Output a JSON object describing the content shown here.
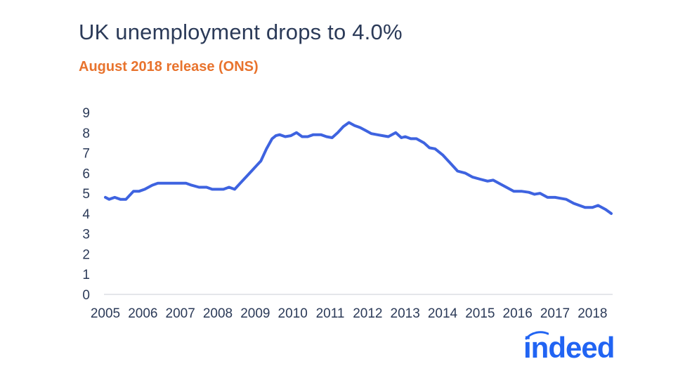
{
  "chart_data": {
    "type": "line",
    "title": "UK unemployment drops to 4.0%",
    "subtitle": "August 2018 release (ONS)",
    "xlabel": "",
    "ylabel": "",
    "xlim": [
      2005.0,
      2018.5
    ],
    "ylim": [
      0,
      9
    ],
    "yticks": [
      0,
      1,
      2,
      3,
      4,
      5,
      6,
      7,
      8,
      9
    ],
    "xticks": [
      2005,
      2006,
      2007,
      2008,
      2009,
      2010,
      2011,
      2012,
      2013,
      2014,
      2015,
      2016,
      2017,
      2018
    ],
    "grid": false,
    "legend": "none",
    "line_color": "#3e63e0",
    "series": [
      {
        "x": [
          2005.0,
          2005.1,
          2005.25,
          2005.4,
          2005.55,
          2005.75,
          2005.9,
          2006.05,
          2006.25,
          2006.4,
          2006.6,
          2006.8,
          2007.0,
          2007.15,
          2007.3,
          2007.5,
          2007.7,
          2007.85,
          2008.0,
          2008.15,
          2008.3,
          2008.45,
          2008.6,
          2008.75,
          2008.9,
          2009.05,
          2009.15,
          2009.3,
          2009.45,
          2009.55,
          2009.65,
          2009.8,
          2009.95,
          2010.1,
          2010.25,
          2010.4,
          2010.55,
          2010.75,
          2010.9,
          2011.05,
          2011.2,
          2011.35,
          2011.5,
          2011.65,
          2011.8,
          2011.95,
          2012.1,
          2012.25,
          2012.4,
          2012.55,
          2012.75,
          2012.9,
          2013.0,
          2013.15,
          2013.3,
          2013.5,
          2013.65,
          2013.8,
          2014.0,
          2014.2,
          2014.4,
          2014.6,
          2014.8,
          2015.0,
          2015.2,
          2015.35,
          2015.5,
          2015.7,
          2015.9,
          2016.1,
          2016.3,
          2016.45,
          2016.6,
          2016.8,
          2017.0,
          2017.15,
          2017.3,
          2017.5,
          2017.65,
          2017.8,
          2018.0,
          2018.15,
          2018.35,
          2018.5
        ],
        "y": [
          4.8,
          4.7,
          4.8,
          4.7,
          4.7,
          5.1,
          5.1,
          5.2,
          5.4,
          5.5,
          5.5,
          5.5,
          5.5,
          5.5,
          5.4,
          5.3,
          5.3,
          5.2,
          5.2,
          5.2,
          5.3,
          5.2,
          5.5,
          5.8,
          6.1,
          6.4,
          6.6,
          7.2,
          7.7,
          7.85,
          7.9,
          7.8,
          7.85,
          8.0,
          7.8,
          7.8,
          7.9,
          7.9,
          7.8,
          7.75,
          8.0,
          8.3,
          8.5,
          8.35,
          8.25,
          8.1,
          7.95,
          7.9,
          7.85,
          7.8,
          8.0,
          7.75,
          7.8,
          7.7,
          7.7,
          7.5,
          7.25,
          7.2,
          6.9,
          6.5,
          6.1,
          6.0,
          5.8,
          5.7,
          5.6,
          5.65,
          5.5,
          5.3,
          5.1,
          5.1,
          5.05,
          4.95,
          5.0,
          4.8,
          4.8,
          4.75,
          4.7,
          4.5,
          4.4,
          4.3,
          4.3,
          4.4,
          4.2,
          4.0
        ]
      }
    ]
  },
  "logo": {
    "text": "indeed",
    "color": "#2164f3"
  }
}
